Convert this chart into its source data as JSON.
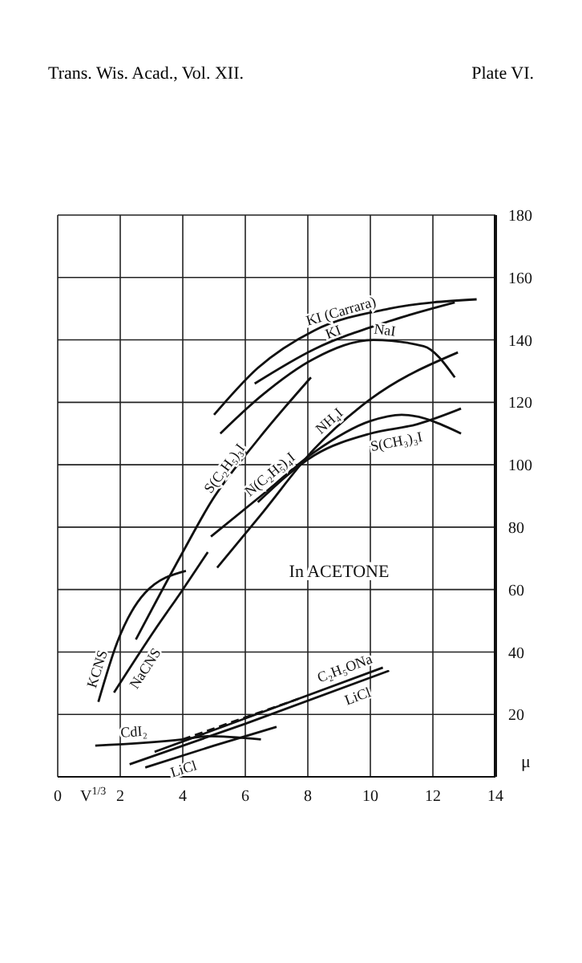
{
  "chart_data": {
    "type": "line",
    "title": "Trans. Wis. Acad., Vol. XII.",
    "annotations": [
      "Plate VI.",
      "In ACETONE"
    ],
    "xlabel": "V$^{1/3}$",
    "ylabel": "μ",
    "xlim": [
      0,
      14
    ],
    "xticks": [
      0,
      2,
      4,
      6,
      8,
      10,
      12,
      14
    ],
    "ylim": [
      0,
      180
    ],
    "yticks": [
      20,
      40,
      60,
      80,
      100,
      120,
      140,
      160,
      180
    ],
    "grid": true,
    "series": [
      {
        "name": "KI (Carrara)",
        "color": "#111111",
        "x": [
          5,
          6.4,
          8.2,
          10.6,
          13.4
        ],
        "values": [
          116,
          131,
          143,
          150,
          153
        ]
      },
      {
        "name": "KI",
        "color": "#111111",
        "x": [
          6.3,
          8.2,
          10.6,
          12.7
        ],
        "values": [
          126,
          137,
          146,
          152
        ]
      },
      {
        "name": "NaI",
        "color": "#111111",
        "x": [
          5.2,
          6.5,
          8.2,
          10.1,
          11.7,
          12.7
        ],
        "values": [
          110,
          122,
          134,
          140,
          138,
          128
        ]
      },
      {
        "name": "NH₄I",
        "color": "#111111",
        "x": [
          5.1,
          6.5,
          8.2,
          10,
          12.8
        ],
        "values": [
          67,
          84,
          105,
          121,
          136
        ]
      },
      {
        "name": "N(C₂H₅)₄I",
        "color": "#111111",
        "x": [
          4.9,
          6.5,
          8.2,
          10,
          11,
          12.9
        ],
        "values": [
          77,
          90,
          104,
          114,
          116,
          110
        ]
      },
      {
        "name": "S(CH₃)₃I",
        "color": "#111111",
        "x": [
          6.4,
          8.2,
          10,
          11.5,
          12.9
        ],
        "values": [
          88,
          103,
          110,
          113,
          118
        ]
      },
      {
        "name": "S(C₂H₅)₃I",
        "color": "#111111",
        "x": [
          2.5,
          4,
          4.9,
          6.4,
          8.1
        ],
        "values": [
          44,
          72,
          88,
          108,
          128
        ]
      },
      {
        "name": "KCNS",
        "color": "#111111",
        "x": [
          1.3,
          1.9,
          2.8,
          4.1
        ],
        "values": [
          24,
          43,
          59,
          66
        ]
      },
      {
        "name": "NaCNS",
        "color": "#111111",
        "x": [
          1.8,
          3.1,
          4,
          4.8
        ],
        "values": [
          27,
          47,
          60,
          72
        ]
      },
      {
        "name": "CdI₂",
        "color": "#111111",
        "x": [
          1.2,
          4,
          4.8,
          6.5
        ],
        "values": [
          10,
          12,
          13,
          12
        ]
      },
      {
        "name": "LiCl",
        "color": "#111111",
        "x": [
          2.3,
          6,
          10.6
        ],
        "values": [
          4,
          17,
          34
        ]
      },
      {
        "name": "LiCl",
        "color": "#111111",
        "x": [
          2.8,
          5,
          7
        ],
        "values": [
          3,
          10,
          16
        ]
      },
      {
        "name": "C₂H₅ONa",
        "color": "#111111",
        "x": [
          3.1,
          7.7,
          10.4
        ],
        "values": [
          8,
          25,
          35
        ]
      },
      {
        "color": "#111111",
        "line_style": "dashed",
        "x": [
          4,
          7.7
        ],
        "values": [
          12,
          25
        ]
      }
    ]
  }
}
